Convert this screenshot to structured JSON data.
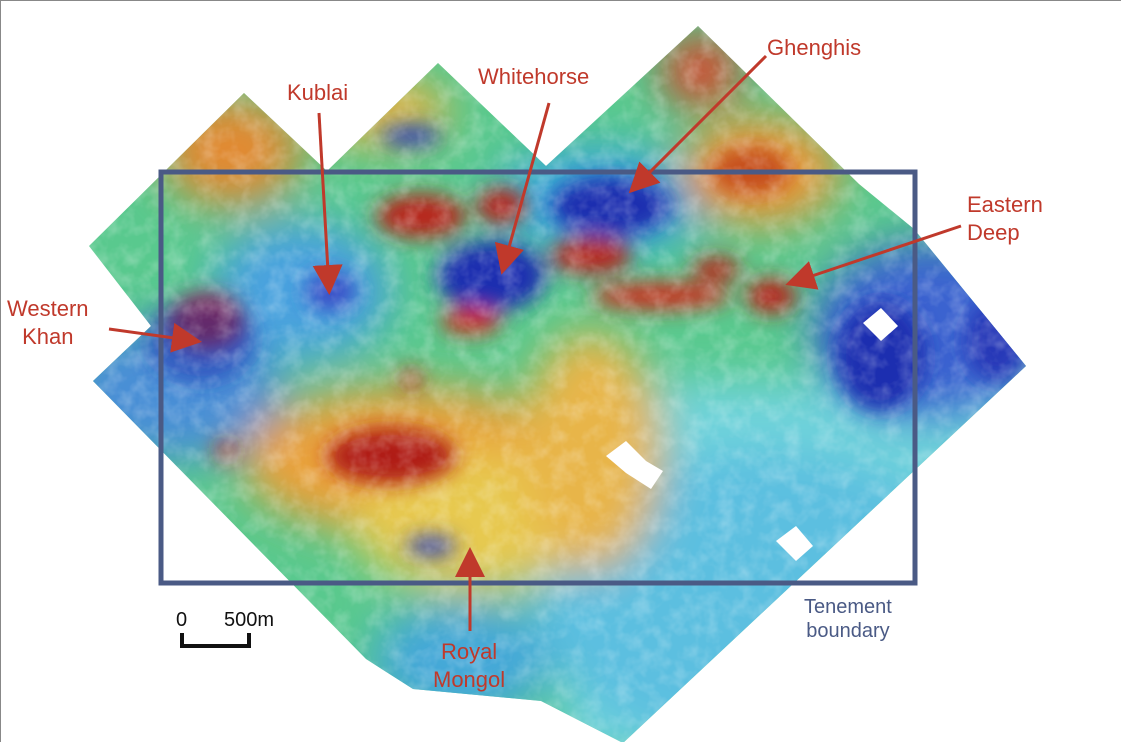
{
  "targets": [
    {
      "key": "kublai",
      "name": "Kublai"
    },
    {
      "key": "whitehorse",
      "name": "Whitehorse"
    },
    {
      "key": "ghenghis",
      "name": "Ghenghis"
    },
    {
      "key": "eastern_deep",
      "name": "Eastern Deep"
    },
    {
      "key": "western_khan",
      "name": "Western Khan"
    },
    {
      "key": "royal_mongol",
      "name": "Royal Mongol"
    }
  ],
  "boundary": {
    "label_line1": "Tenement",
    "label_line2": "boundary",
    "color": "#4a5a85"
  },
  "scale_bar": {
    "start_label": "0",
    "end_label": "500m"
  },
  "colors": {
    "label": "#c0392b",
    "high": "#b01e12",
    "mid_high": "#e8781e",
    "mid": "#e6d84a",
    "mid_low": "#4dc35a",
    "low": "#2fb5c8",
    "very_low": "#1f2fb0"
  }
}
